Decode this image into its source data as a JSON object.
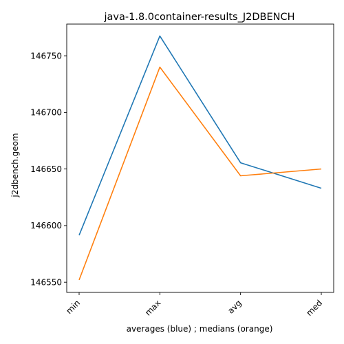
{
  "chart_data": {
    "type": "line",
    "title": "java-1.8.0container-results_J2DBENCH",
    "xlabel": "averages (blue) ; medians (orange)",
    "ylabel": "j2dbench.geom",
    "categories": [
      "min",
      "max",
      "avg",
      "med"
    ],
    "series": [
      {
        "color": "#1f77b4",
        "values": [
          146591.5,
          146767.5,
          146655.5,
          146633.0
        ]
      },
      {
        "color": "#ff7f0e",
        "values": [
          146552.0,
          146740.0,
          146644.0,
          146650.0
        ]
      }
    ],
    "yticks": [
      146550,
      146600,
      146650,
      146700,
      146750
    ],
    "ylim": [
      146541,
      146778
    ],
    "grid": false
  }
}
